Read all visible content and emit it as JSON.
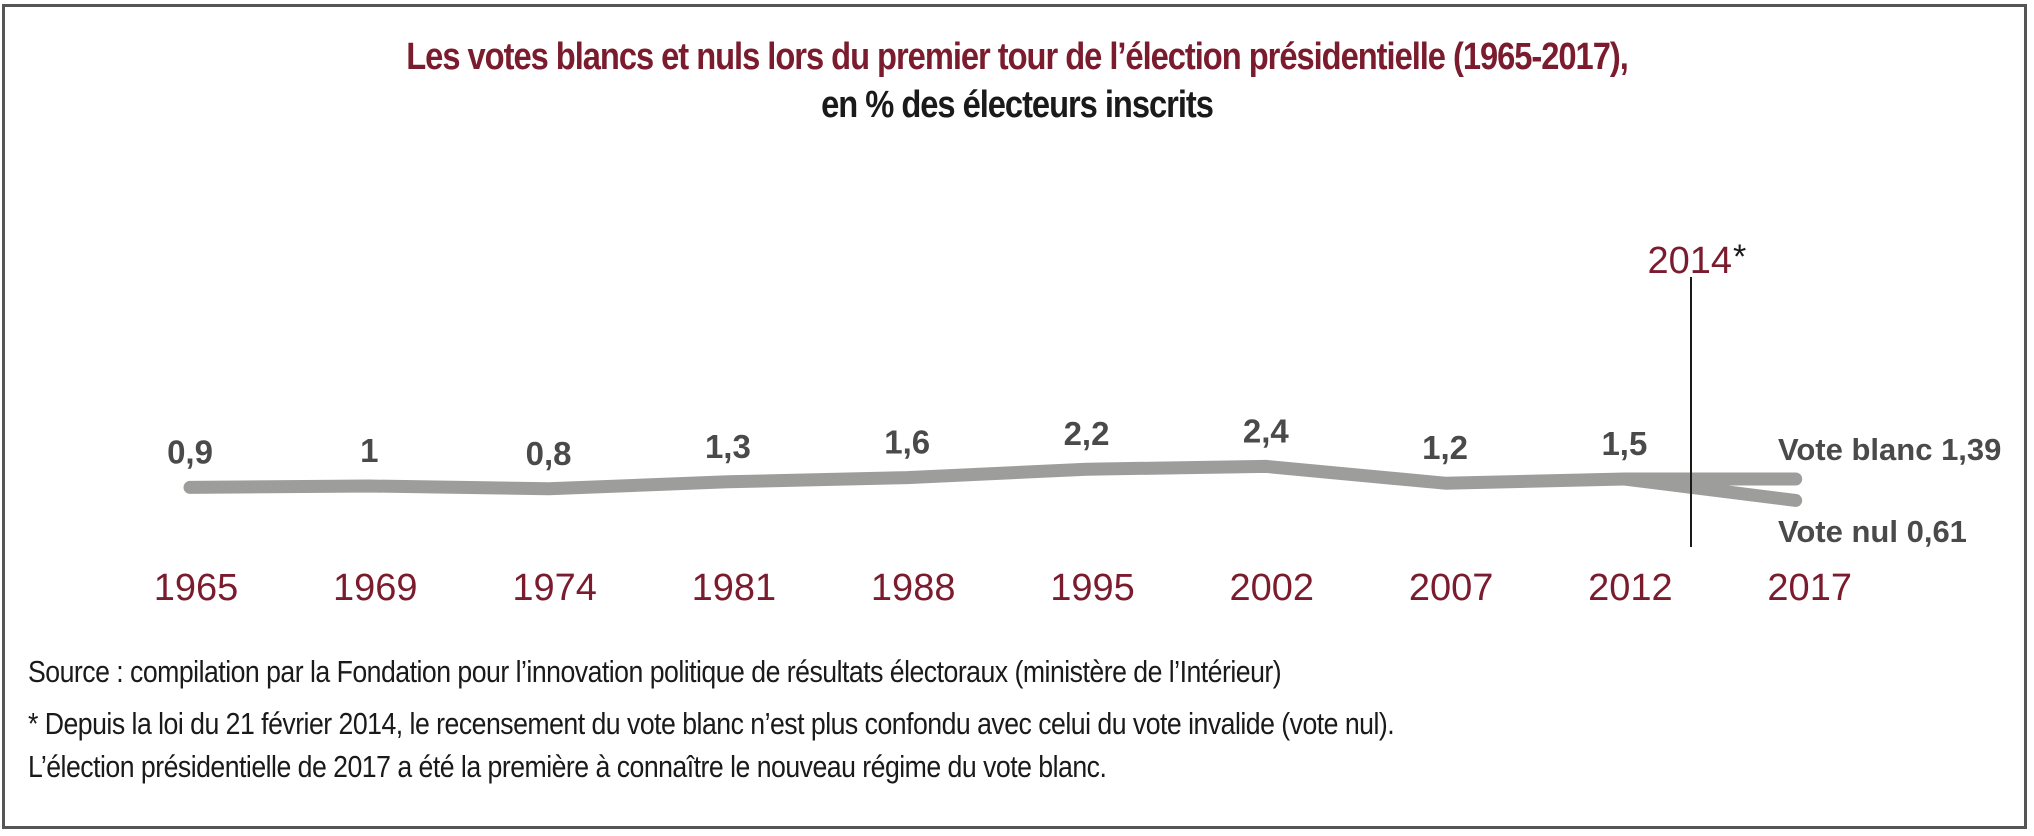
{
  "chart_data": {
    "type": "line",
    "title": "Les votes blancs et nuls lors du premier tour de l’élection présidentielle (1965-2017),",
    "subtitle": "en % des électeurs inscrits",
    "xlabel": "",
    "ylabel": "",
    "grid": false,
    "x": [
      "1965",
      "1969",
      "1974",
      "1981",
      "1988",
      "1995",
      "2002",
      "2007",
      "2012",
      "2017"
    ],
    "series": [
      {
        "name": "Votes blancs et nuls",
        "values": [
          0.9,
          1.0,
          0.8,
          1.3,
          1.6,
          2.2,
          2.4,
          1.2,
          1.5,
          null
        ],
        "labels": [
          "0,9",
          "1",
          "0,8",
          "1,3",
          "1,6",
          "2,2",
          "2,4",
          "1,2",
          "1,5",
          null
        ]
      },
      {
        "name": "Vote blanc",
        "values": [
          null,
          null,
          null,
          null,
          null,
          null,
          null,
          null,
          1.5,
          1.39
        ],
        "end_label": "Vote blanc 1,39"
      },
      {
        "name": "Vote nul",
        "values": [
          null,
          null,
          null,
          null,
          null,
          null,
          null,
          null,
          1.5,
          0.61
        ],
        "end_label": "Vote nul 0,61"
      }
    ],
    "annotations": [
      {
        "type": "vertical-line",
        "x": "2014",
        "label": "2014",
        "marker": "*"
      }
    ],
    "colors": {
      "line": "#9d9d9c",
      "accent": "#7b1c2e",
      "value_text": "#4a4a4a",
      "marker_line": "#1a1a1a"
    }
  },
  "footer": {
    "source": "Source : compilation par la Fondation pour l’innovation politique de résultats électoraux (ministère de l’Intérieur)",
    "note_line1": "* Depuis la loi du 21 février 2014, le recensement du vote blanc n’est plus confondu avec celui du vote invalide (vote nul).",
    "note_line2": "L’élection présidentielle de 2017 a été la première à connaître le nouveau régime du vote blanc."
  }
}
